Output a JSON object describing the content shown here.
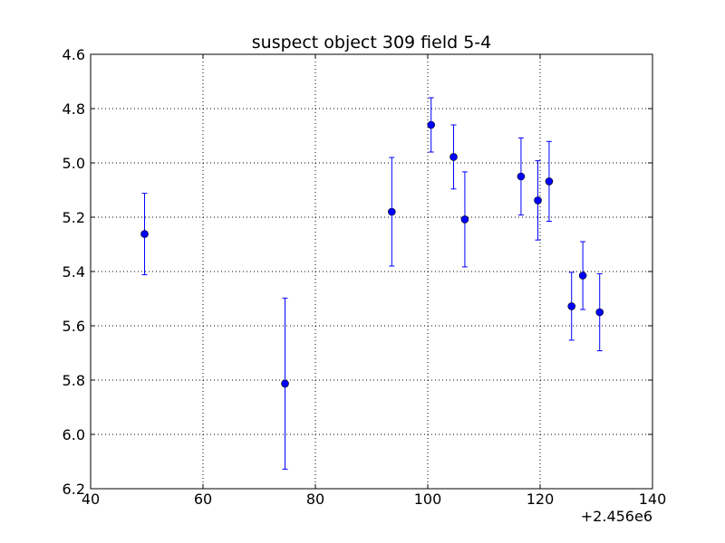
{
  "chart_data": {
    "type": "scatter",
    "title": "suspect object 309 field 5-4",
    "xlabel": "",
    "ylabel": "",
    "x_offset_label": "+2.456e6",
    "xlim": [
      40,
      140
    ],
    "ylim": [
      4.6,
      6.2
    ],
    "y_inverted": true,
    "grid": true,
    "x_ticks": [
      "40",
      "60",
      "80",
      "100",
      "120",
      "140"
    ],
    "y_ticks": [
      "4.6",
      "4.8",
      "5.0",
      "5.2",
      "5.4",
      "5.6",
      "5.8",
      "6.0",
      "6.2"
    ],
    "series": [
      {
        "points": [
          {
            "x": 49.6,
            "y": 5.262,
            "err": 0.15
          },
          {
            "x": 74.6,
            "y": 5.813,
            "err": 0.315
          },
          {
            "x": 93.6,
            "y": 5.18,
            "err": 0.2
          },
          {
            "x": 100.6,
            "y": 4.86,
            "err": 0.1
          },
          {
            "x": 104.6,
            "y": 4.978,
            "err": 0.118
          },
          {
            "x": 106.6,
            "y": 5.208,
            "err": 0.175
          },
          {
            "x": 116.6,
            "y": 5.05,
            "err": 0.142
          },
          {
            "x": 119.6,
            "y": 5.138,
            "err": 0.146
          },
          {
            "x": 121.6,
            "y": 5.068,
            "err": 0.147
          },
          {
            "x": 125.6,
            "y": 5.528,
            "err": 0.125
          },
          {
            "x": 127.6,
            "y": 5.415,
            "err": 0.125
          },
          {
            "x": 130.6,
            "y": 5.55,
            "err": 0.142
          }
        ]
      }
    ],
    "colors": {
      "marker": "#0000ff",
      "errorbar": "#0000ff",
      "grid": "#000000",
      "axis": "#000000"
    }
  }
}
